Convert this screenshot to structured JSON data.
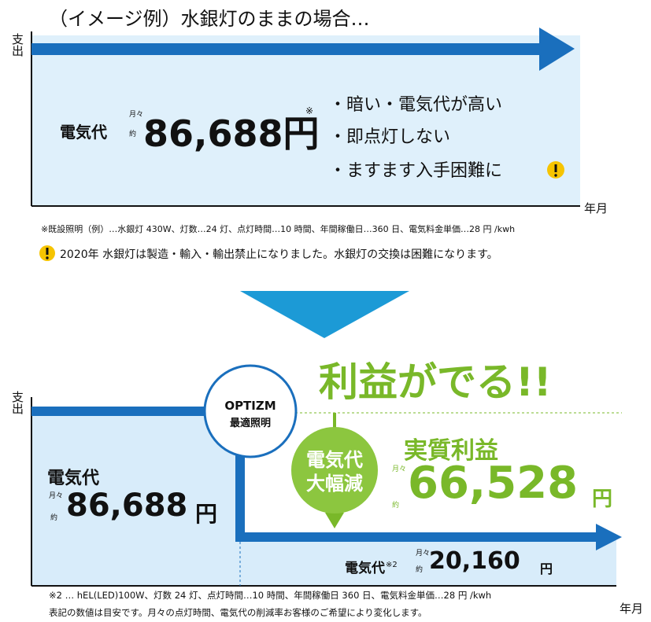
{
  "top": {
    "title": "（イメージ例）水銀灯のままの場合…",
    "y_axis": "支出",
    "x_axis": "年月",
    "cost_label": "電気代",
    "monthly": "月々",
    "approx": "約",
    "amount": "86,688円",
    "note_mark": "※",
    "bullets": [
      "・暗い・電気代が高い",
      "・即点灯しない",
      "・ますます入手困難に"
    ],
    "footnote": "※既設照明（例）…水銀灯 430W、灯数…24 灯、点灯時間…10 時間、年間稼働日…360 日、電気料金単価…28 円 /kwh",
    "warning": "2020年 水銀灯は製造・輸入・輸出禁止になりました。水銀灯の交換は困難になります。"
  },
  "bottom": {
    "headline": "利益がでる!!",
    "badge": [
      "OPTIZM",
      "最適照明"
    ],
    "y_axis": "支出",
    "x_axis": "年月",
    "before": {
      "label": "電気代",
      "monthly": "月々",
      "approx": "約",
      "amount": "86,688",
      "unit": "円"
    },
    "reduction": [
      "電気代",
      "大幅減"
    ],
    "profit": {
      "label": "実質利益",
      "monthly": "月々",
      "approx": "約",
      "amount": "66,528",
      "unit": "円"
    },
    "after": {
      "label": "電気代",
      "note_mark": "※2",
      "monthly": "月々",
      "approx": "約",
      "amount": "20,160",
      "unit": "円"
    },
    "notes": [
      "※2 … hEL(LED)100W、灯数 24 灯、点灯時間…10 時間、年間稼働日 360 日、電気料金単価…28 円 /kwh",
      "表記の数値は目安です。月々の点灯時間、電気代の削減率お客様のご希望により変化します。"
    ]
  }
}
